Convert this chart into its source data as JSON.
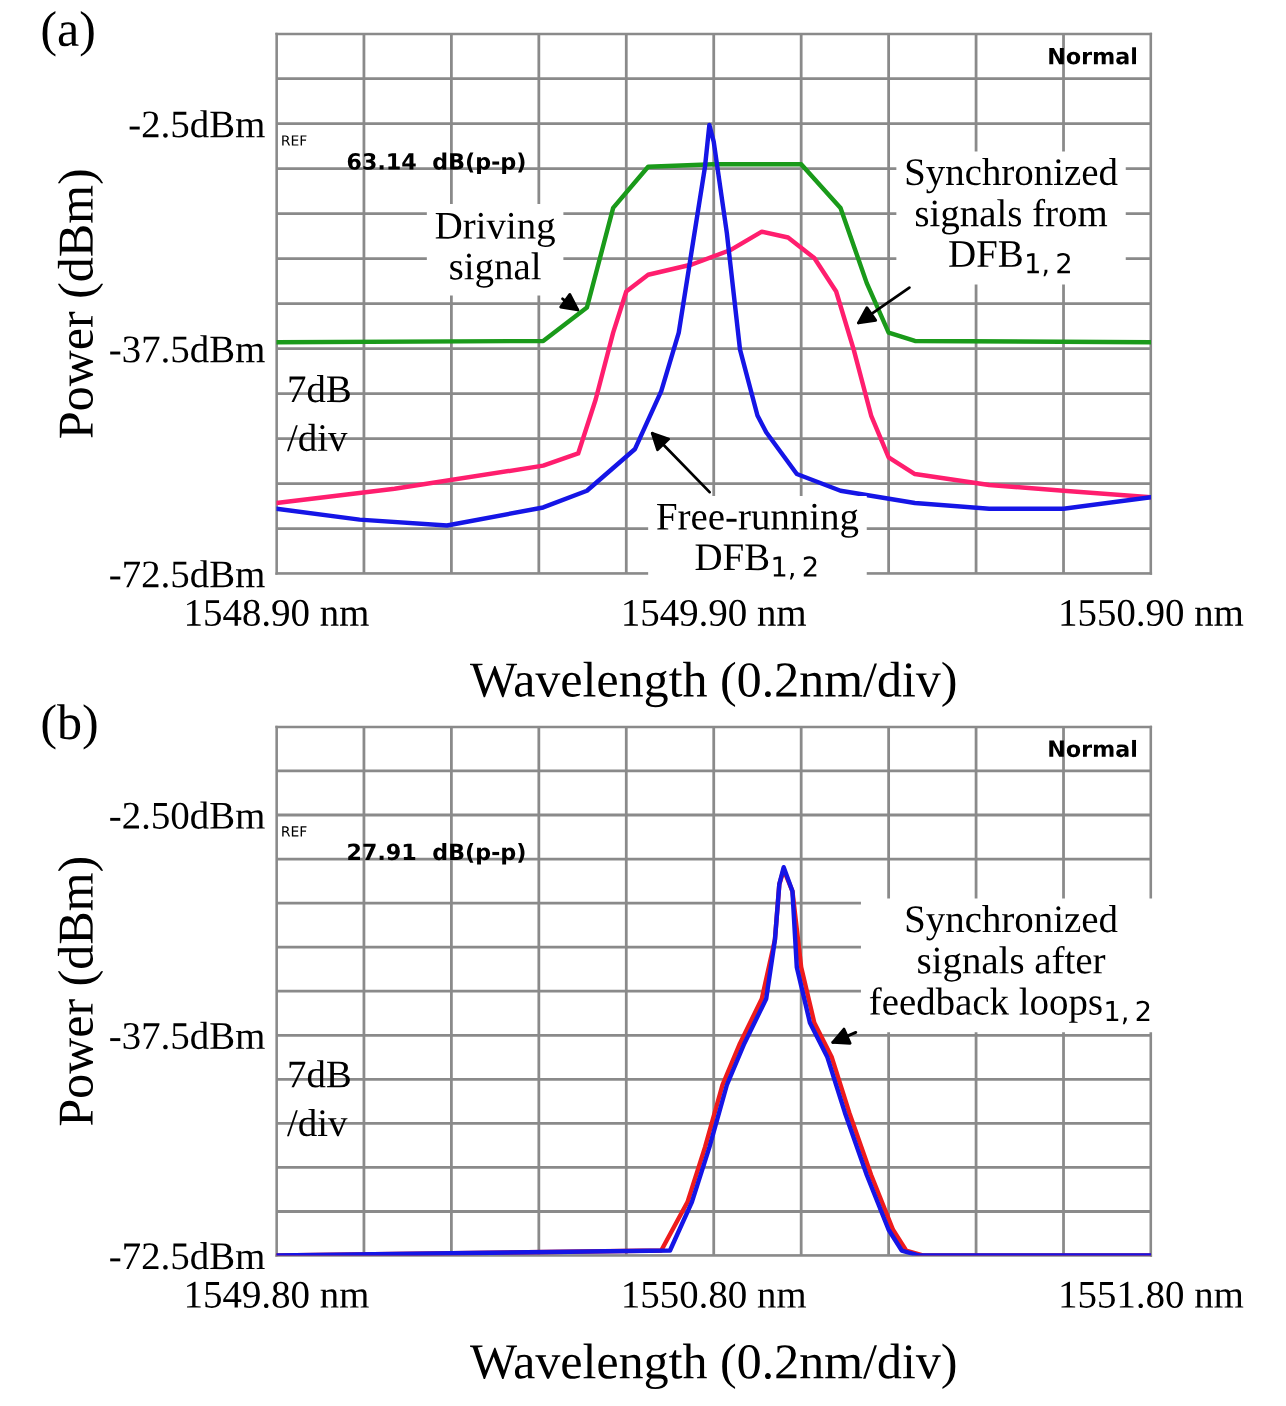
{
  "chart_data": [
    {
      "type": "line",
      "title": "(a)",
      "xlabel": "Wavelength (0.2nm/div)",
      "ylabel": "Power (dBm)",
      "xlim": [
        1548.9,
        1550.9
      ],
      "xticks": [
        {
          "value": 1548.9,
          "label": "1548.90 nm"
        },
        {
          "value": 1549.1,
          "label": null
        },
        {
          "value": 1549.3,
          "label": null
        },
        {
          "value": 1549.5,
          "label": null
        },
        {
          "value": 1549.7,
          "label": null
        },
        {
          "value": 1549.9,
          "label": "1549.90 nm"
        },
        {
          "value": 1550.1,
          "label": null
        },
        {
          "value": 1550.3,
          "label": null
        },
        {
          "value": 1550.5,
          "label": null
        },
        {
          "value": 1550.7,
          "label": null
        },
        {
          "value": 1550.9,
          "label": "1550.90 nm"
        }
      ],
      "ylim": [
        -72.5,
        11.5
      ],
      "yticks": [
        {
          "value": -72.5,
          "label": "-72.5dBm"
        },
        {
          "value": -65.5,
          "label": null
        },
        {
          "value": -58.5,
          "label": null
        },
        {
          "value": -51.5,
          "label": null
        },
        {
          "value": -44.5,
          "label": null
        },
        {
          "value": -37.5,
          "label": "-37.5dBm"
        },
        {
          "value": -30.5,
          "label": null
        },
        {
          "value": -23.5,
          "label": null
        },
        {
          "value": -16.5,
          "label": null
        },
        {
          "value": -9.5,
          "label": null
        },
        {
          "value": -2.5,
          "label": "-2.5dBm"
        },
        {
          "value": 4.5,
          "label": null
        },
        {
          "value": 11.5,
          "label": null
        }
      ],
      "grid": true,
      "series": [
        {
          "color": "#1a9a1a",
          "x": [
            1548.9,
            1549.51,
            1549.61,
            1549.67,
            1549.75,
            1549.9,
            1550.1,
            1550.19,
            1550.25,
            1550.3,
            1550.36,
            1550.9
          ],
          "values": [
            -36.5,
            -36.3,
            -31.1,
            -15.6,
            -9.2,
            -8.8,
            -8.8,
            -15.6,
            -27.3,
            -35,
            -36.3,
            -36.5
          ]
        },
        {
          "color": "#ff1e6e",
          "x": [
            1548.9,
            1549.17,
            1549.51,
            1549.59,
            1549.63,
            1549.67,
            1549.7,
            1549.75,
            1549.85,
            1549.94,
            1550.01,
            1550.07,
            1550.13,
            1550.18,
            1550.22,
            1550.26,
            1550.3,
            1550.36,
            1550.53,
            1550.7,
            1550.9
          ],
          "values": [
            -61.5,
            -59.3,
            -55.7,
            -53.8,
            -45.4,
            -35,
            -28.6,
            -26,
            -24.4,
            -22.1,
            -19.3,
            -20.2,
            -23.4,
            -28.6,
            -37.6,
            -47.9,
            -54.4,
            -57,
            -58.7,
            -59.6,
            -60.6
          ]
        },
        {
          "color": "#1515e6",
          "x": [
            1548.9,
            1549.09,
            1549.29,
            1549.51,
            1549.61,
            1549.72,
            1549.78,
            1549.82,
            1549.85,
            1549.88,
            1549.89,
            1549.9,
            1549.93,
            1549.96,
            1550.0,
            1550.02,
            1550.09,
            1550.19,
            1550.36,
            1550.53,
            1550.7,
            1550.9
          ],
          "values": [
            -62.4,
            -64.1,
            -65,
            -62.2,
            -59.6,
            -53.1,
            -44.1,
            -35,
            -22.1,
            -9.2,
            -2.7,
            -5.3,
            -19.5,
            -37.6,
            -47.9,
            -50.5,
            -57,
            -59.6,
            -61.5,
            -62.4,
            -62.4,
            -60.6
          ]
        }
      ],
      "annotations": [
        "Normal",
        "REF",
        "63.14  dB(p-p)",
        "7dB\n/div",
        {
          "text": "Driving\nsignal",
          "x": 1549.6,
          "y": -32
        },
        {
          "text": "Synchronized\nsignals from\nDFB$_{1,2}$",
          "x": 1550.22,
          "y": -34
        },
        {
          "text": "Free-running\nDFB$_{1,2}$",
          "x": 1549.75,
          "y": -50
        }
      ]
    },
    {
      "type": "line",
      "title": "(b)",
      "xlabel": "Wavelength (0.2nm/div)",
      "ylabel": "Power (dBm)",
      "xlim": [
        1549.8,
        1551.8
      ],
      "xticks": [
        {
          "value": 1549.8,
          "label": "1549.80 nm"
        },
        {
          "value": 1550.0,
          "label": null
        },
        {
          "value": 1550.2,
          "label": null
        },
        {
          "value": 1550.4,
          "label": null
        },
        {
          "value": 1550.6,
          "label": null
        },
        {
          "value": 1550.8,
          "label": "1550.80 nm"
        },
        {
          "value": 1551.0,
          "label": null
        },
        {
          "value": 1551.2,
          "label": null
        },
        {
          "value": 1551.4,
          "label": null
        },
        {
          "value": 1551.6,
          "label": null
        },
        {
          "value": 1551.8,
          "label": "1551.80 nm"
        }
      ],
      "ylim": [
        -72.5,
        11.5
      ],
      "yticks": [
        {
          "value": -72.5,
          "label": "-72.5dBm"
        },
        {
          "value": -65.5,
          "label": null
        },
        {
          "value": -58.5,
          "label": null
        },
        {
          "value": -51.5,
          "label": null
        },
        {
          "value": -44.5,
          "label": null
        },
        {
          "value": -37.5,
          "label": "-37.5dBm"
        },
        {
          "value": -30.5,
          "label": null
        },
        {
          "value": -23.5,
          "label": null
        },
        {
          "value": -16.5,
          "label": null
        },
        {
          "value": -9.5,
          "label": null
        },
        {
          "value": -2.5,
          "label": "-2.50dBm"
        },
        {
          "value": 4.5,
          "label": null
        },
        {
          "value": 11.5,
          "label": null
        }
      ],
      "grid": true,
      "series": [
        {
          "color": "#ee1c1c",
          "x": [
            1549.8,
            1550.68,
            1550.74,
            1550.78,
            1550.82,
            1550.86,
            1550.91,
            1550.94,
            1550.95,
            1550.96,
            1550.98,
            1551.0,
            1551.03,
            1551.07,
            1551.11,
            1551.16,
            1551.21,
            1551.24,
            1551.28,
            1551.8
          ],
          "values": [
            -72.5,
            -71.7,
            -64,
            -55.3,
            -45.4,
            -38.8,
            -31.7,
            -22.3,
            -13.5,
            -11.2,
            -14.6,
            -26.7,
            -35.5,
            -41,
            -49.8,
            -59.7,
            -68.4,
            -71.7,
            -72.5,
            -72.5
          ]
        },
        {
          "color": "#1515e6",
          "x": [
            1549.8,
            1550.7,
            1550.75,
            1550.79,
            1550.83,
            1550.87,
            1550.92,
            1550.94,
            1550.95,
            1550.96,
            1550.98,
            1550.99,
            1551.02,
            1551.06,
            1551.1,
            1551.15,
            1551.2,
            1551.23,
            1551.27,
            1551.8
          ],
          "values": [
            -72.5,
            -71.7,
            -64,
            -55.3,
            -45.4,
            -38.8,
            -31.7,
            -22.3,
            -13.5,
            -10.8,
            -14.6,
            -26.7,
            -35.5,
            -41,
            -49.8,
            -59.7,
            -68.4,
            -71.7,
            -72.5,
            -72.5
          ]
        }
      ],
      "annotations": [
        "Normal",
        "REF",
        "27.91  dB(p-p)",
        "7dB\n/div",
        {
          "text": "Synchronized\nsignals after\nfeedback loops$_{1,2}$",
          "x": 1551.06,
          "y": -39
        }
      ]
    }
  ]
}
